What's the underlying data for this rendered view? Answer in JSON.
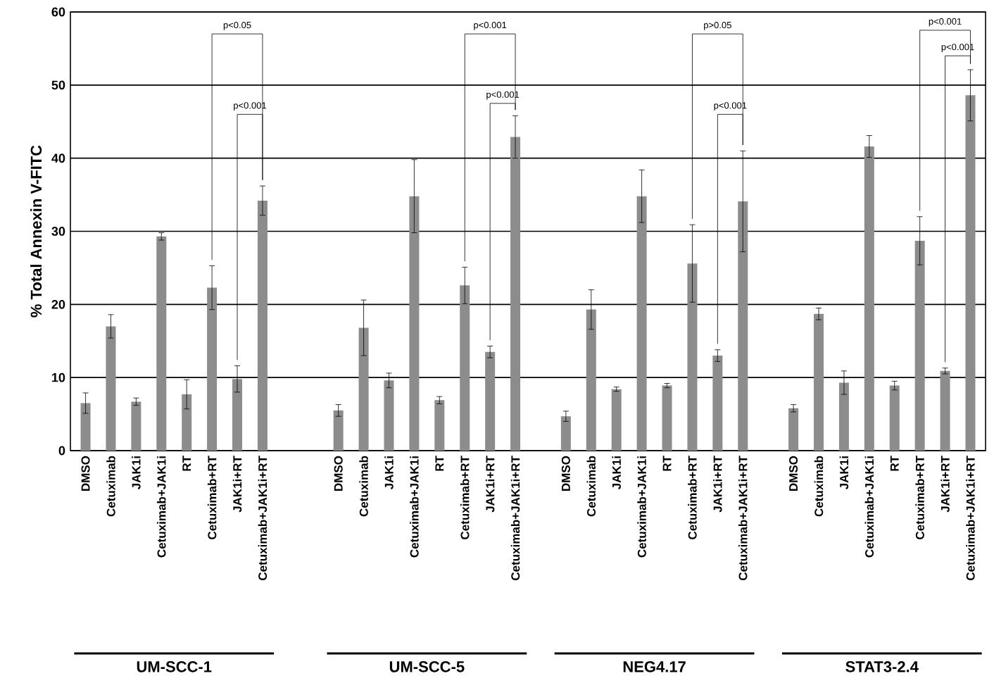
{
  "chart_data": {
    "type": "bar",
    "ylabel": "% Total Annexin V-FITC",
    "categories": [
      "DMSO",
      "Cetuximab",
      "JAK1i",
      "Cetuximab+JAK1i",
      "RT",
      "Cetuximab+RT",
      "JAK1i+RT",
      "Cetuximab+JAK1i+RT",
      null,
      null,
      "DMSO",
      "Cetuximab",
      "JAK1i",
      "Cetuximab+JAK1i",
      "RT",
      "Cetuximab+RT",
      "JAK1i+RT",
      "Cetuximab+JAK1i+RT",
      null,
      "DMSO",
      "Cetuximab",
      "JAK1i",
      "Cetuximab+JAK1i",
      "RT",
      "Cetuximab+RT",
      "JAK1i+RT",
      "Cetuximab+JAK1i+RT",
      null,
      "DMSO",
      "Cetuximab",
      "JAK1i",
      "Cetuximab+JAK1i",
      "RT",
      "Cetuximab+RT",
      "JAK1i+RT",
      "Cetuximab+JAK1i+RT"
    ],
    "values": [
      6.5,
      17.0,
      6.7,
      29.3,
      7.7,
      22.3,
      9.8,
      34.2,
      null,
      null,
      5.5,
      16.8,
      9.6,
      34.8,
      6.9,
      22.6,
      13.5,
      42.9,
      null,
      4.7,
      19.3,
      8.4,
      34.8,
      8.9,
      25.6,
      13.0,
      34.1,
      null,
      5.8,
      18.7,
      9.3,
      41.6,
      8.9,
      28.7,
      10.9,
      48.6
    ],
    "errors": [
      1.4,
      1.6,
      0.5,
      0.5,
      2.0,
      3.0,
      1.8,
      2.0,
      null,
      null,
      0.8,
      3.8,
      1.0,
      5.0,
      0.5,
      2.5,
      0.8,
      2.9,
      null,
      0.7,
      2.7,
      0.3,
      3.6,
      0.3,
      5.3,
      0.8,
      6.9,
      null,
      0.5,
      0.8,
      1.6,
      1.5,
      0.6,
      3.3,
      0.4,
      3.5
    ],
    "color": "#8c8c8c",
    "ylim": [
      0,
      60
    ],
    "yticks": [
      0,
      10,
      20,
      30,
      40,
      50,
      60
    ],
    "grid": "y",
    "annotations": [
      "UM-SCC-1",
      "UM-SCC-5",
      "NEG4.17",
      "STAT3-2.4",
      "p<0.05",
      "p<0.001",
      "p<0.001",
      "p<0.001",
      "p>0.05",
      "p<0.001",
      "p<0.001",
      "p<0.001"
    ]
  }
}
